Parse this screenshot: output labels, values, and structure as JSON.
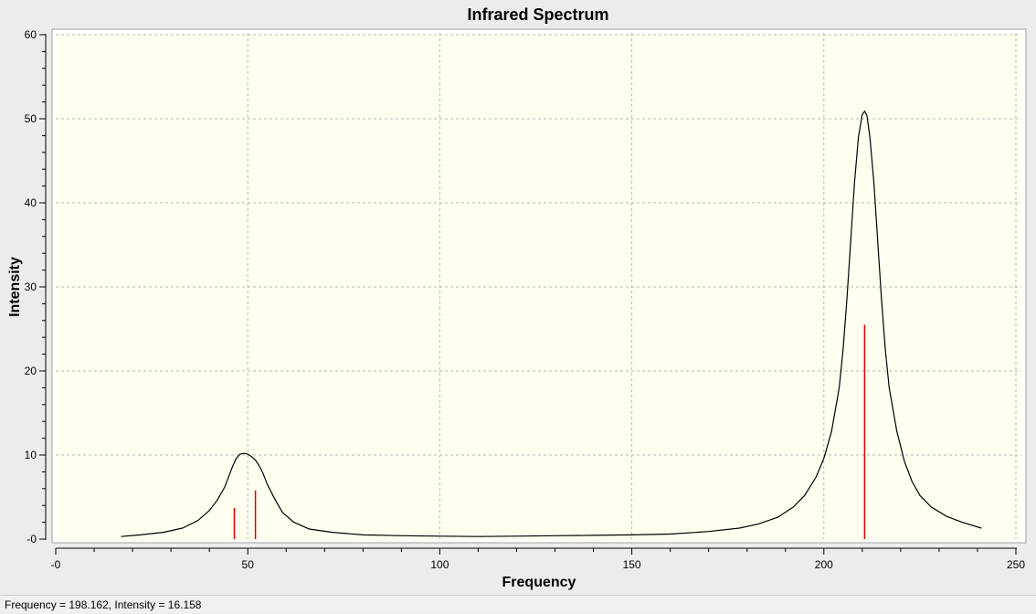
{
  "chart_data": {
    "type": "line",
    "title": "Infrared Spectrum",
    "xlabel": "Frequency",
    "ylabel": "Intensity",
    "xlim": [
      0,
      250
    ],
    "ylim": [
      0,
      60
    ],
    "x_ticks": [
      0,
      50,
      100,
      150,
      200,
      250
    ],
    "x_tick_labels": [
      "-0",
      "50",
      "100",
      "150",
      "200",
      "250"
    ],
    "y_ticks": [
      0,
      10,
      20,
      30,
      40,
      50,
      60
    ],
    "y_tick_labels": [
      "-0",
      "10",
      "20",
      "30",
      "40",
      "50",
      "60"
    ],
    "grid": true,
    "colors": {
      "plot_background": "#fffff0",
      "curve": "#000000",
      "sticks": "#e00000",
      "grid": "#b4b4b4"
    },
    "series": [
      {
        "type": "line",
        "points": [
          [
            17,
            0.3
          ],
          [
            22,
            0.5
          ],
          [
            28,
            0.8
          ],
          [
            33,
            1.3
          ],
          [
            37,
            2.2
          ],
          [
            40,
            3.4
          ],
          [
            42,
            4.6
          ],
          [
            44,
            6.2
          ],
          [
            45,
            7.4
          ],
          [
            46,
            8.6
          ],
          [
            47,
            9.6
          ],
          [
            48,
            10.1
          ],
          [
            49,
            10.2
          ],
          [
            50,
            10.1
          ],
          [
            51,
            9.8
          ],
          [
            52,
            9.4
          ],
          [
            53,
            8.7
          ],
          [
            54,
            7.8
          ],
          [
            55,
            6.6
          ],
          [
            57,
            4.8
          ],
          [
            59,
            3.2
          ],
          [
            62,
            2.0
          ],
          [
            66,
            1.2
          ],
          [
            72,
            0.8
          ],
          [
            80,
            0.5
          ],
          [
            90,
            0.4
          ],
          [
            100,
            0.35
          ],
          [
            110,
            0.3
          ],
          [
            120,
            0.35
          ],
          [
            130,
            0.4
          ],
          [
            140,
            0.45
          ],
          [
            150,
            0.5
          ],
          [
            160,
            0.6
          ],
          [
            170,
            0.9
          ],
          [
            178,
            1.3
          ],
          [
            183,
            1.8
          ],
          [
            188,
            2.6
          ],
          [
            192,
            3.8
          ],
          [
            195,
            5.2
          ],
          [
            198,
            7.4
          ],
          [
            200,
            9.6
          ],
          [
            202,
            12.8
          ],
          [
            204,
            18.0
          ],
          [
            205,
            22.5
          ],
          [
            206,
            28.5
          ],
          [
            207,
            35.5
          ],
          [
            208,
            42.5
          ],
          [
            209,
            47.8
          ],
          [
            210,
            50.5
          ],
          [
            210.6,
            50.9
          ],
          [
            211.2,
            50.4
          ],
          [
            212,
            47.8
          ],
          [
            213,
            42.5
          ],
          [
            214,
            35.5
          ],
          [
            215,
            28.5
          ],
          [
            216,
            22.5
          ],
          [
            217,
            18.0
          ],
          [
            219,
            12.8
          ],
          [
            221,
            9.2
          ],
          [
            223,
            6.8
          ],
          [
            225,
            5.2
          ],
          [
            228,
            3.8
          ],
          [
            232,
            2.7
          ],
          [
            236,
            2.0
          ],
          [
            241,
            1.3
          ]
        ]
      },
      {
        "type": "stick",
        "points": [
          [
            46.5,
            3.7
          ],
          [
            52,
            5.8
          ],
          [
            210.6,
            25.5
          ]
        ]
      }
    ]
  },
  "status": {
    "text": "Frequency = 198.162,  Intensity = 16.158"
  }
}
